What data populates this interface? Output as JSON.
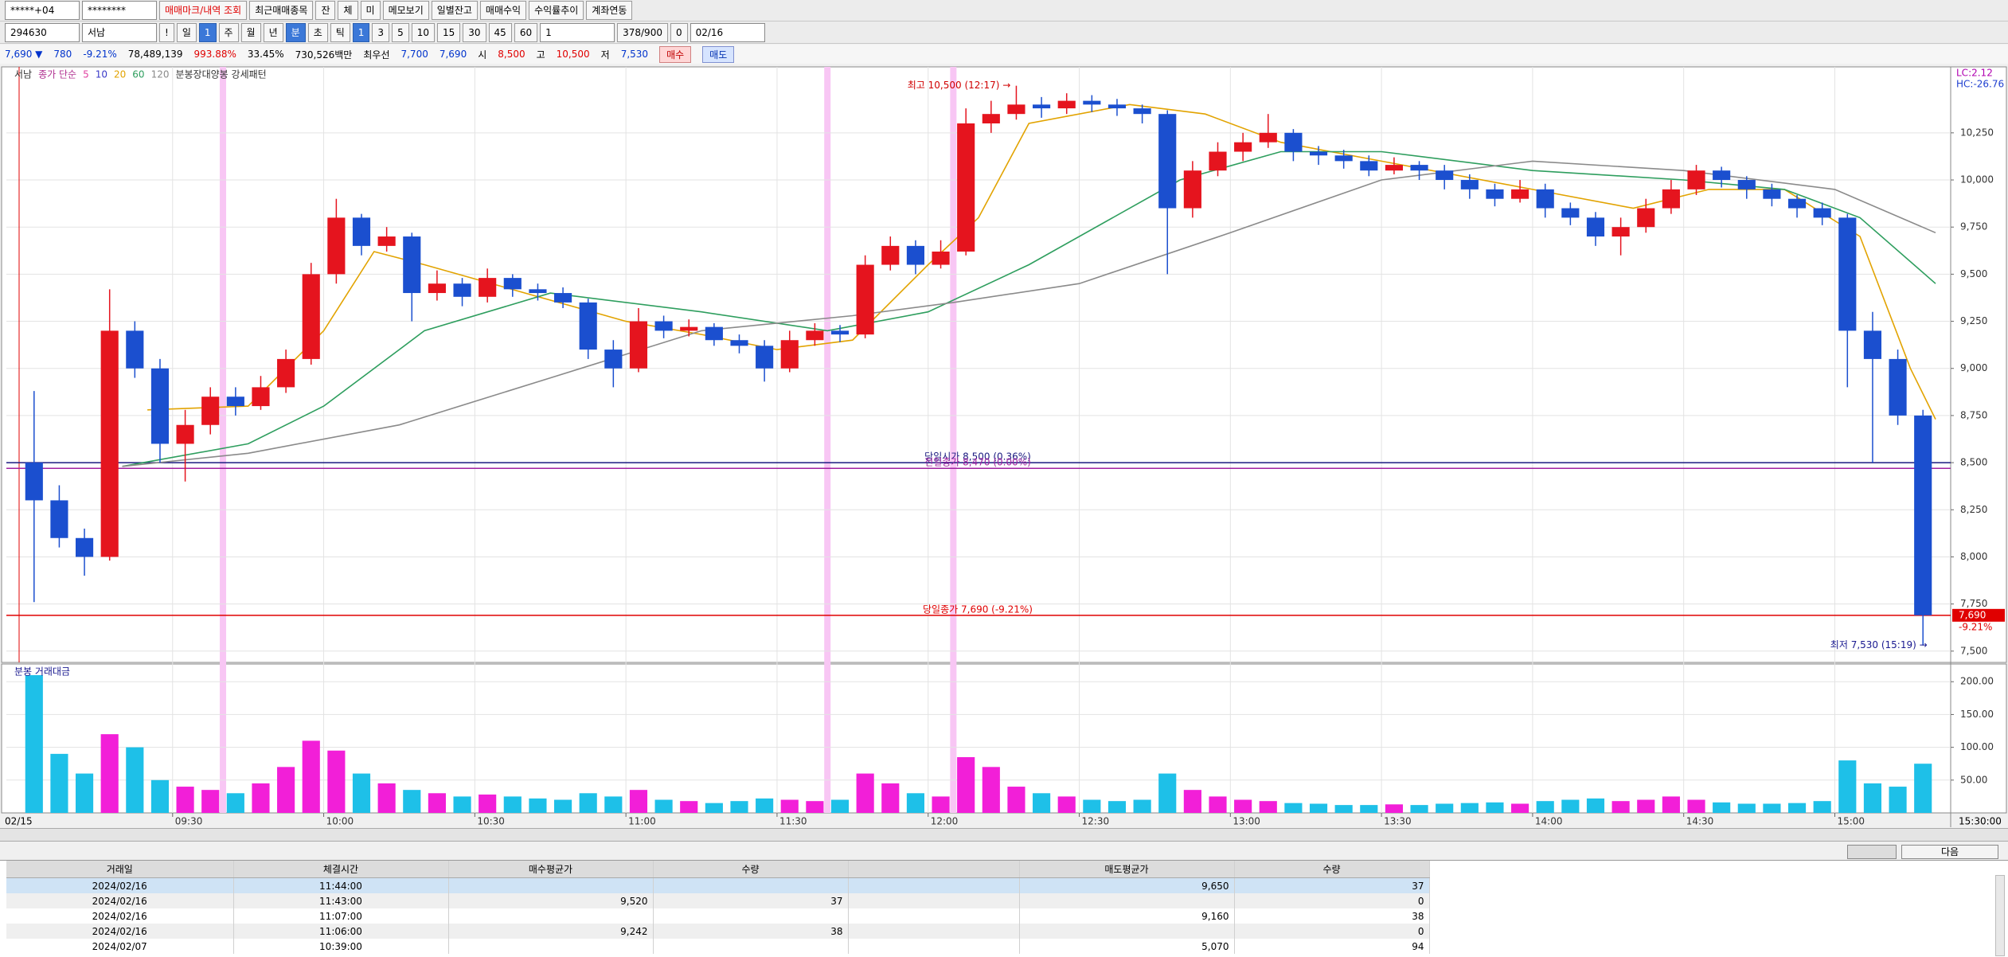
{
  "toolbar": {
    "row1": [
      "*****+04",
      "********",
      "매매마크/내역 조회",
      "최근매매종목",
      "잔",
      "체",
      "미",
      "메모보기",
      "일별잔고",
      "매매수익",
      "수익률추이",
      "계좌연동"
    ],
    "row2": [
      "294630",
      "서남",
      "!",
      "일",
      "1",
      "주",
      "월",
      "년",
      "분",
      "초",
      "틱",
      "1",
      "3",
      "5",
      "10",
      "15",
      "30",
      "45",
      "60",
      "1",
      "378/900",
      "0",
      "02/16"
    ],
    "info": [
      "7,690 ▼",
      "780",
      "-9.21%",
      "78,489,139",
      "993.88%",
      "33.45%",
      "730,526백만",
      "최우선",
      "7,700",
      "7,690",
      "시",
      "8,500",
      "고",
      "10,500",
      "저",
      "7,530",
      "매수",
      "매도"
    ]
  },
  "chart_data": {
    "type": "candlestick",
    "name": "서남",
    "legend_prefix": "종가 단순",
    "pattern_label": "분봉장대양봉 강세패턴",
    "volume_label": "분봉 거래대금",
    "x": [
      "09:00",
      "09:05",
      "09:10",
      "09:15",
      "09:20",
      "09:25",
      "09:30",
      "09:35",
      "09:40",
      "09:45",
      "09:50",
      "09:55",
      "10:00",
      "10:05",
      "10:10",
      "10:15",
      "10:20",
      "10:25",
      "10:30",
      "10:35",
      "10:40",
      "10:45",
      "10:50",
      "10:55",
      "11:00",
      "11:05",
      "11:10",
      "11:15",
      "11:20",
      "11:25",
      "11:30",
      "11:35",
      "11:40",
      "11:45",
      "11:50",
      "11:55",
      "12:00",
      "12:05",
      "12:10",
      "12:15",
      "12:20",
      "12:25",
      "12:30",
      "12:35",
      "12:40",
      "12:45",
      "12:50",
      "12:55",
      "13:00",
      "13:05",
      "13:10",
      "13:15",
      "13:20",
      "13:25",
      "13:30",
      "13:35",
      "13:40",
      "13:45",
      "13:50",
      "13:55",
      "14:00",
      "14:05",
      "14:10",
      "14:15",
      "14:20",
      "14:25",
      "14:30",
      "14:35",
      "14:40",
      "14:45",
      "14:50",
      "14:55",
      "15:00",
      "15:05",
      "15:10",
      "15:15"
    ],
    "open": [
      8500,
      8300,
      8100,
      8000,
      9200,
      9000,
      8600,
      8700,
      8850,
      8800,
      8900,
      9050,
      9500,
      9800,
      9650,
      9700,
      9400,
      9450,
      9380,
      9480,
      9420,
      9400,
      9350,
      9100,
      9000,
      9250,
      9200,
      9220,
      9150,
      9120,
      9000,
      9150,
      9200,
      9180,
      9550,
      9650,
      9550,
      9620,
      10300,
      10350,
      10400,
      10380,
      10420,
      10400,
      10380,
      10350,
      9850,
      10050,
      10150,
      10200,
      10250,
      10150,
      10130,
      10100,
      10050,
      10080,
      10050,
      10000,
      9950,
      9900,
      9950,
      9850,
      9800,
      9700,
      9750,
      9850,
      9950,
      10050,
      10000,
      9950,
      9900,
      9850,
      9800,
      9200,
      9050,
      8750
    ],
    "high": [
      8880,
      8380,
      8150,
      9420,
      9250,
      9050,
      8780,
      8900,
      8900,
      8960,
      9100,
      9560,
      9900,
      9820,
      9750,
      9720,
      9520,
      9480,
      9530,
      9500,
      9450,
      9430,
      9370,
      9150,
      9320,
      9280,
      9260,
      9240,
      9180,
      9150,
      9200,
      9240,
      9230,
      9600,
      9700,
      9680,
      9680,
      10380,
      10420,
      10500,
      10440,
      10460,
      10450,
      10430,
      10400,
      10370,
      10100,
      10200,
      10250,
      10350,
      10270,
      10180,
      10160,
      10130,
      10120,
      10100,
      10080,
      10030,
      9980,
      10000,
      9980,
      9880,
      9830,
      9800,
      9900,
      10000,
      10080,
      10070,
      10020,
      9980,
      9920,
      9880,
      9820,
      9300,
      9100,
      8780
    ],
    "low": [
      7760,
      8050,
      7900,
      7980,
      8950,
      8500,
      8400,
      8650,
      8750,
      8780,
      8870,
      9020,
      9450,
      9600,
      9620,
      9250,
      9360,
      9330,
      9350,
      9380,
      9360,
      9320,
      9050,
      8900,
      8980,
      9160,
      9170,
      9120,
      9080,
      8930,
      8980,
      9120,
      9140,
      9160,
      9520,
      9500,
      9530,
      9600,
      10250,
      10320,
      10330,
      10350,
      10360,
      10340,
      10300,
      9500,
      9800,
      10020,
      10100,
      10170,
      10100,
      10080,
      10060,
      10020,
      10030,
      10000,
      9950,
      9900,
      9860,
      9880,
      9800,
      9760,
      9650,
      9600,
      9720,
      9820,
      9920,
      9960,
      9900,
      9860,
      9800,
      9760,
      8900,
      8500,
      8700,
      7530
    ],
    "close": [
      8300,
      8100,
      8000,
      9200,
      9000,
      8600,
      8700,
      8850,
      8800,
      8900,
      9050,
      9500,
      9800,
      9650,
      9700,
      9400,
      9450,
      9380,
      9480,
      9420,
      9400,
      9350,
      9100,
      9000,
      9250,
      9200,
      9220,
      9150,
      9120,
      9000,
      9150,
      9200,
      9180,
      9550,
      9650,
      9550,
      9620,
      10300,
      10350,
      10400,
      10380,
      10420,
      10400,
      10380,
      10350,
      9850,
      10050,
      10150,
      10200,
      10250,
      10150,
      10130,
      10100,
      10050,
      10080,
      10050,
      10000,
      9950,
      9900,
      9950,
      9850,
      9800,
      9700,
      9750,
      9850,
      9950,
      10050,
      10000,
      9950,
      9900,
      9850,
      9800,
      9200,
      9050,
      8750,
      7690
    ],
    "volume": [
      210,
      90,
      60,
      120,
      100,
      50,
      40,
      35,
      30,
      45,
      70,
      110,
      95,
      60,
      45,
      35,
      30,
      25,
      28,
      25,
      22,
      20,
      30,
      25,
      35,
      20,
      18,
      15,
      18,
      22,
      20,
      18,
      20,
      60,
      45,
      30,
      25,
      85,
      70,
      40,
      30,
      25,
      20,
      18,
      20,
      60,
      35,
      25,
      20,
      18,
      15,
      14,
      12,
      12,
      13,
      12,
      14,
      15,
      16,
      14,
      18,
      20,
      22,
      18,
      20,
      25,
      20,
      16,
      14,
      14,
      15,
      18,
      80,
      45,
      40,
      75
    ],
    "up_color": "#e5141e",
    "down_color": "#1b4fcf",
    "volume_up_color": "#f21fd8",
    "volume_down_color": "#1ec0e8",
    "ma": [
      {
        "name": "5",
        "color": "#e040a0"
      },
      {
        "name": "10",
        "color": "#3a3ac8"
      },
      {
        "name": "20",
        "color": "#e2a300",
        "x": [
          "09:25",
          "09:45",
          "10:00",
          "10:10",
          "10:20",
          "10:40",
          "11:00",
          "11:15",
          "11:30",
          "11:45",
          "12:00",
          "12:10",
          "12:20",
          "12:40",
          "12:55",
          "13:10",
          "13:30",
          "14:00",
          "14:20",
          "14:35",
          "14:50",
          "15:05",
          "15:15",
          "15:20"
        ],
        "values": [
          8780,
          8800,
          9200,
          9620,
          9550,
          9400,
          9250,
          9180,
          9100,
          9150,
          9550,
          9800,
          10300,
          10400,
          10350,
          10200,
          10100,
          9950,
          9850,
          9950,
          9950,
          9700,
          9000,
          8730
        ]
      },
      {
        "name": "60",
        "color": "#2e9e5e",
        "x": [
          "09:20",
          "09:45",
          "10:00",
          "10:20",
          "10:45",
          "11:15",
          "11:40",
          "12:00",
          "12:20",
          "12:50",
          "13:10",
          "13:30",
          "14:00",
          "14:30",
          "14:50",
          "15:05",
          "15:20"
        ],
        "values": [
          8480,
          8600,
          8800,
          9200,
          9400,
          9300,
          9200,
          9300,
          9550,
          10000,
          10150,
          10150,
          10050,
          10000,
          9950,
          9800,
          9450
        ]
      },
      {
        "name": "120",
        "color": "#8a8a8a",
        "x": [
          "09:20",
          "09:45",
          "10:15",
          "10:45",
          "11:15",
          "11:45",
          "12:05",
          "12:30",
          "13:00",
          "13:30",
          "14:00",
          "14:30",
          "15:00",
          "15:20"
        ],
        "values": [
          8480,
          8550,
          8700,
          8950,
          9200,
          9280,
          9350,
          9450,
          9720,
          10000,
          10100,
          10050,
          9950,
          9720
        ]
      }
    ],
    "xlim": [
      "08:57",
      "15:23"
    ],
    "xticks": [
      "09:30",
      "10:00",
      "10:30",
      "11:00",
      "11:30",
      "12:00",
      "12:30",
      "13:00",
      "13:30",
      "14:00",
      "14:30",
      "15:00"
    ],
    "x_start_label": "02/15",
    "x_end_label": "15:30:00",
    "ylim": [
      7440,
      10600
    ],
    "yticks": [
      {
        "value": 7500,
        "label": "7,500"
      },
      {
        "value": 7750,
        "label": "7,750"
      },
      {
        "value": 8000,
        "label": "8,000"
      },
      {
        "value": 8250,
        "label": "8,250"
      },
      {
        "value": 8500,
        "label": "8,500"
      },
      {
        "value": 8750,
        "label": "8,750"
      },
      {
        "value": 9000,
        "label": "9,000"
      },
      {
        "value": 9250,
        "label": "9,250"
      },
      {
        "value": 9500,
        "label": "9,500"
      },
      {
        "value": 9750,
        "label": "9,750"
      },
      {
        "value": 10000,
        "label": "10,000"
      },
      {
        "value": 10250,
        "label": "10,250"
      }
    ],
    "volume_lim": [
      0,
      227
    ],
    "volume_ticks": [
      {
        "value": 50,
        "label": "50.00"
      },
      {
        "value": 100,
        "label": "100.00"
      },
      {
        "value": 150,
        "label": "150.00"
      },
      {
        "value": 200,
        "label": "200.00"
      }
    ],
    "ref_lines": [
      {
        "label": "당일시가 8,500 (0.36%)",
        "value": 8500,
        "color": "#1a1a80"
      },
      {
        "label": "전일종가 8,470 (0.00%)",
        "value": 8470,
        "color": "#a020a0"
      },
      {
        "label": "당일종가 7,690 (-9.21%)",
        "value": 7690,
        "color": "#e00000"
      }
    ],
    "high_note": {
      "label": "최고 10,500 (12:17) →",
      "value": 10500,
      "time": "12:17"
    },
    "low_note": {
      "label": "최저 7,530 (15:19) →",
      "value": 7530,
      "time": "15:19"
    },
    "last_price": {
      "label": "7,690",
      "value": 7690,
      "change": "-9.21%"
    },
    "corner": [
      "LC:2.12",
      "HC:-26.76"
    ],
    "pattern_times": [
      "09:40",
      "11:40",
      "12:05"
    ],
    "grid": true
  },
  "table": {
    "headers": [
      "거래일",
      "체결시간",
      "매수평균가",
      "수량",
      "매도평균가",
      "수량"
    ],
    "rows": [
      [
        "2024/02/16",
        "11:44:00",
        null,
        null,
        "9,650",
        "37"
      ],
      [
        "2024/02/16",
        "11:43:00",
        "9,520",
        "37",
        null,
        "0"
      ],
      [
        "2024/02/16",
        "11:07:00",
        null,
        null,
        "9,160",
        "38"
      ],
      [
        "2024/02/16",
        "11:06:00",
        "9,242",
        "38",
        null,
        "0"
      ],
      [
        "2024/02/07",
        "10:39:00",
        null,
        null,
        "5,070",
        "94"
      ]
    ]
  },
  "buttons": {
    "next": "다음"
  }
}
